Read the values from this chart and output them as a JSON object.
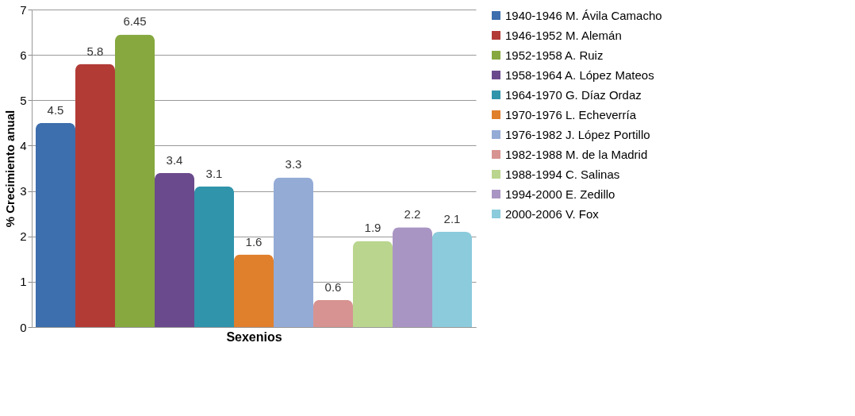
{
  "chart_data": {
    "type": "bar",
    "xlabel": "Sexenios",
    "ylabel": "% Crecimiento anual",
    "categories": [
      null,
      null,
      null,
      null,
      null,
      null,
      null,
      null,
      null,
      null,
      null
    ],
    "series": [
      {
        "name": "1940-1946 M. Ávila Camacho",
        "color": "#3d6ead",
        "values": [
          4.5,
          null,
          null,
          null,
          null,
          null,
          null,
          null,
          null,
          null,
          null
        ]
      },
      {
        "name": "1946-1952 M. Alemán",
        "color": "#b23b36",
        "values": [
          null,
          5.8,
          null,
          null,
          null,
          null,
          null,
          null,
          null,
          null,
          null
        ]
      },
      {
        "name": "1952-1958 A. Ruiz",
        "color": "#86a83f",
        "values": [
          null,
          null,
          6.45,
          null,
          null,
          null,
          null,
          null,
          null,
          null,
          null
        ]
      },
      {
        "name": "1958-1964 A. López Mateos",
        "color": "#6a4a8c",
        "values": [
          null,
          null,
          null,
          3.4,
          null,
          null,
          null,
          null,
          null,
          null,
          null
        ]
      },
      {
        "name": "1964-1970 G. Díaz Ordaz",
        "color": "#3094ab",
        "values": [
          null,
          null,
          null,
          null,
          3.1,
          null,
          null,
          null,
          null,
          null,
          null
        ]
      },
      {
        "name": "1970-1976 L. Echeverría",
        "color": "#e07f2c",
        "values": [
          null,
          null,
          null,
          null,
          null,
          1.6,
          null,
          null,
          null,
          null,
          null
        ]
      },
      {
        "name": "1976-1982 J. López Portillo",
        "color": "#94abd6",
        "values": [
          null,
          null,
          null,
          null,
          null,
          null,
          3.3,
          null,
          null,
          null,
          null
        ]
      },
      {
        "name": "1982-1988 M. de la Madrid",
        "color": "#d79391",
        "values": [
          null,
          null,
          null,
          null,
          null,
          null,
          null,
          0.6,
          null,
          null,
          null
        ]
      },
      {
        "name": "1988-1994 C. Salinas",
        "color": "#bad58e",
        "values": [
          null,
          null,
          null,
          null,
          null,
          null,
          null,
          null,
          1.9,
          null,
          null
        ]
      },
      {
        "name": "1994-2000 E. Zedillo",
        "color": "#a995c3",
        "values": [
          null,
          null,
          null,
          null,
          null,
          null,
          null,
          null,
          null,
          2.2,
          null
        ]
      },
      {
        "name": "2000-2006 V. Fox",
        "color": "#8ccbdc",
        "values": [
          null,
          null,
          null,
          null,
          null,
          null,
          null,
          null,
          null,
          null,
          2.1
        ]
      }
    ],
    "ylim": [
      0,
      7
    ],
    "yticks": [
      0,
      1,
      2,
      3,
      4,
      5,
      6,
      7
    ],
    "grid": "y",
    "legend": "right",
    "data_labels": true,
    "tick_labels": "y"
  }
}
